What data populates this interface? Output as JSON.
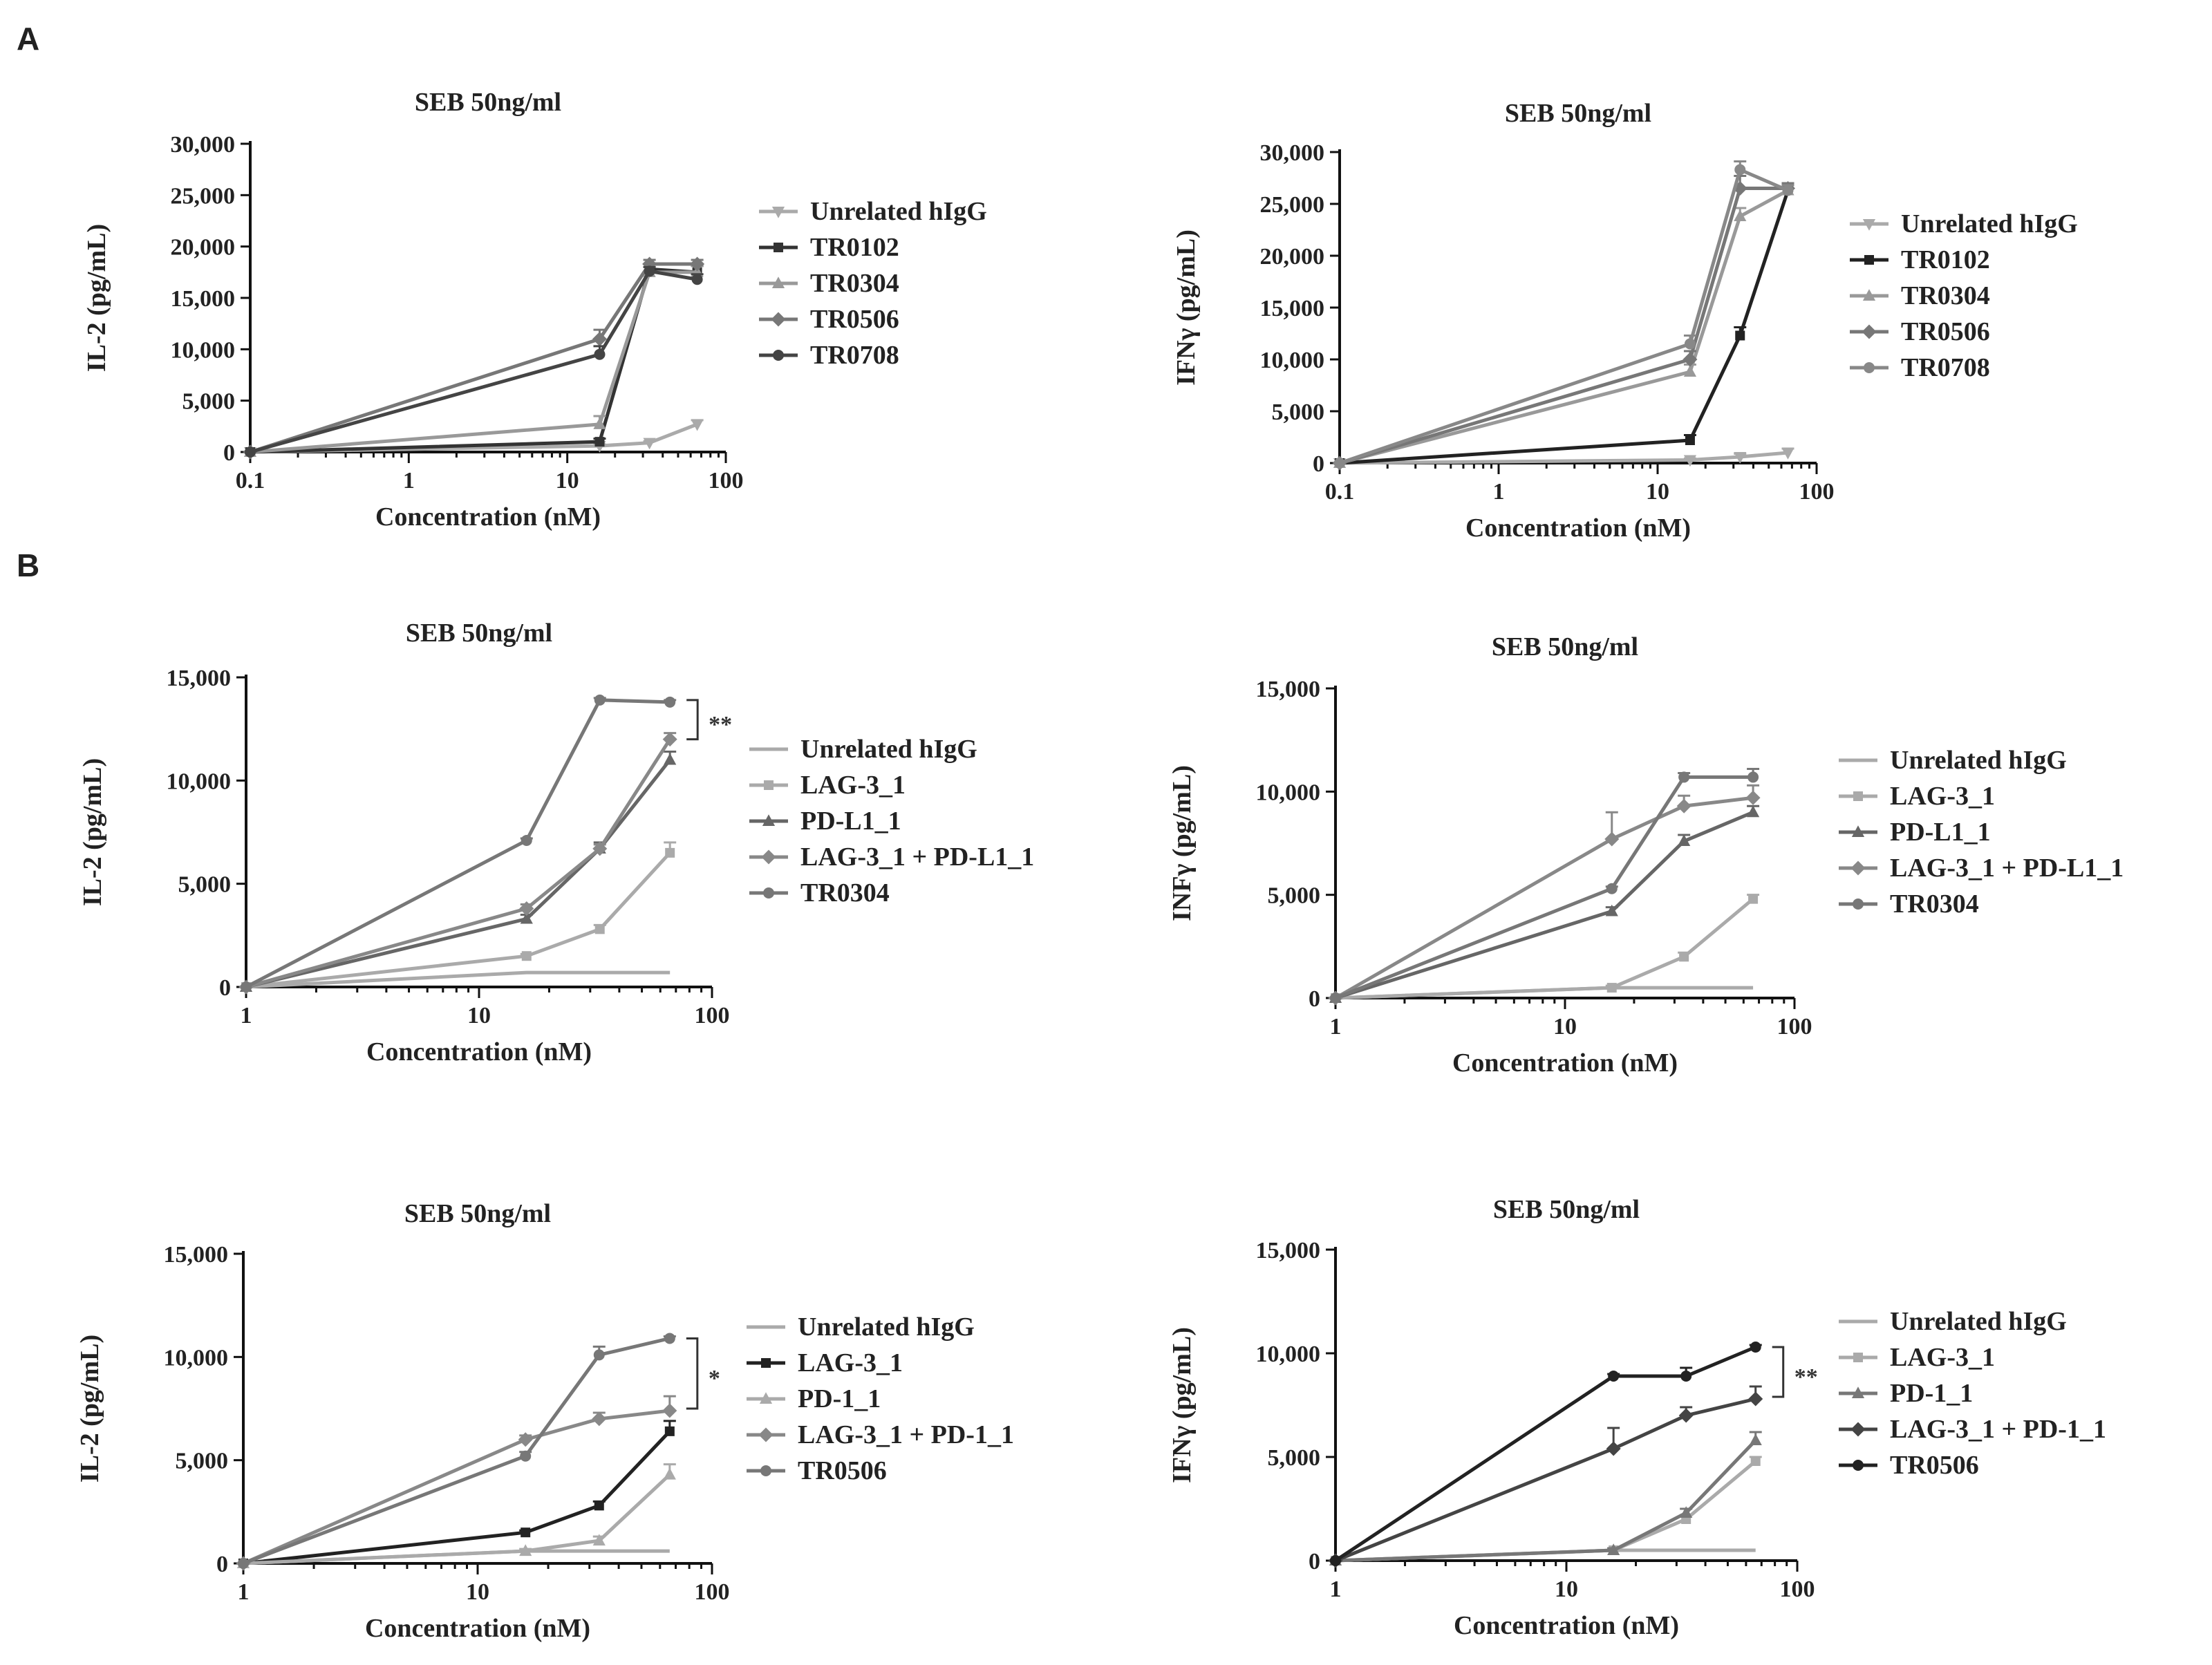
{
  "panels": {
    "A": "A",
    "B": "B"
  },
  "colors": {
    "black": "#222222",
    "dark": "#555555",
    "mid": "#777777",
    "light": "#999999",
    "lighter": "#aaaaaa"
  },
  "chart_data": [
    {
      "id": "a-il2",
      "type": "line",
      "title": "SEB 50ng/ml",
      "xlabel": "Concentration (nM)",
      "ylabel": "IL-2 (pg/mL)",
      "xscale": "log",
      "xlim": [
        0.1,
        100
      ],
      "ylim": [
        0,
        30000
      ],
      "yticks": [
        0,
        5000,
        10000,
        15000,
        20000,
        25000,
        30000
      ],
      "ytick_labels": [
        "0",
        "5,000",
        "10,000",
        "15,000",
        "20,000",
        "25,000",
        "30,000"
      ],
      "xticks": [
        0.1,
        1,
        10,
        100
      ],
      "xtick_labels": [
        "0.1",
        "1",
        "10",
        "100"
      ],
      "legend_position": "right",
      "series": [
        {
          "name": "Unrelated hIgG",
          "color": "#aaaaaa",
          "marker": "tri-down",
          "x": [
            0.1,
            16,
            33,
            66
          ],
          "y": [
            0,
            600,
            900,
            2700
          ],
          "err": [
            0,
            150,
            150,
            400
          ]
        },
        {
          "name": "TR0102",
          "color": "#333333",
          "marker": "square",
          "x": [
            0.1,
            16,
            33,
            66
          ],
          "y": [
            0,
            1000,
            17800,
            17500
          ],
          "err": [
            0,
            300,
            500,
            600
          ]
        },
        {
          "name": "TR0304",
          "color": "#999999",
          "marker": "tri-up",
          "x": [
            0.1,
            16,
            33,
            66
          ],
          "y": [
            0,
            2700,
            17500,
            17500
          ],
          "err": [
            0,
            800,
            500,
            600
          ]
        },
        {
          "name": "TR0506",
          "color": "#777777",
          "marker": "diamond",
          "x": [
            0.1,
            16,
            33,
            66
          ],
          "y": [
            0,
            11000,
            18300,
            18300
          ],
          "err": [
            0,
            900,
            400,
            400
          ]
        },
        {
          "name": "TR0708",
          "color": "#444444",
          "marker": "circle",
          "x": [
            0.1,
            16,
            33,
            66
          ],
          "y": [
            0,
            9500,
            17600,
            16800
          ],
          "err": [
            0,
            800,
            400,
            500
          ]
        }
      ]
    },
    {
      "id": "a-ifng",
      "type": "line",
      "title": "SEB 50ng/ml",
      "xlabel": "Concentration (nM)",
      "ylabel": "IFNγ (pg/mL)",
      "xscale": "log",
      "xlim": [
        0.1,
        100
      ],
      "ylim": [
        0,
        30000
      ],
      "yticks": [
        0,
        5000,
        10000,
        15000,
        20000,
        25000,
        30000
      ],
      "ytick_labels": [
        "0",
        "5,000",
        "10,000",
        "15,000",
        "20,000",
        "25,000",
        "30,000"
      ],
      "xticks": [
        0.1,
        1,
        10,
        100
      ],
      "xtick_labels": [
        "0.1",
        "1",
        "10",
        "100"
      ],
      "legend_position": "right",
      "series": [
        {
          "name": "Unrelated hIgG",
          "color": "#aaaaaa",
          "marker": "tri-down",
          "x": [
            0.1,
            16,
            33,
            66
          ],
          "y": [
            0,
            300,
            600,
            1000
          ],
          "err": [
            0,
            150,
            300,
            400
          ]
        },
        {
          "name": "TR0102",
          "color": "#222222",
          "marker": "square",
          "x": [
            0.1,
            16,
            33,
            66
          ],
          "y": [
            0,
            2200,
            12300,
            26300
          ],
          "err": [
            0,
            500,
            800,
            500
          ]
        },
        {
          "name": "TR0304",
          "color": "#999999",
          "marker": "tri-up",
          "x": [
            0.1,
            16,
            33,
            66
          ],
          "y": [
            0,
            8800,
            23800,
            26300
          ],
          "err": [
            0,
            700,
            800,
            500
          ]
        },
        {
          "name": "TR0506",
          "color": "#777777",
          "marker": "diamond",
          "x": [
            0.1,
            16,
            33,
            66
          ],
          "y": [
            0,
            10000,
            26500,
            26500
          ],
          "err": [
            0,
            800,
            1200,
            500
          ]
        },
        {
          "name": "TR0708",
          "color": "#888888",
          "marker": "circle",
          "x": [
            0.1,
            16,
            33,
            66
          ],
          "y": [
            0,
            11500,
            28300,
            26300
          ],
          "err": [
            0,
            800,
            800,
            500
          ]
        }
      ]
    },
    {
      "id": "b-il2-pdl1",
      "type": "line",
      "title": "SEB 50ng/ml",
      "xlabel": "Concentration (nM)",
      "ylabel": "IL-2 (pg/mL)",
      "xscale": "log",
      "xlim": [
        1,
        100
      ],
      "ylim": [
        0,
        15000
      ],
      "yticks": [
        0,
        5000,
        10000,
        15000
      ],
      "ytick_labels": [
        "0",
        "5,000",
        "10,000",
        "15,000"
      ],
      "xticks": [
        1,
        10,
        100
      ],
      "xtick_labels": [
        "1",
        "10",
        "100"
      ],
      "legend_position": "right",
      "significance": {
        "label": "**",
        "y_top": 13900,
        "y_bottom": 12000
      },
      "series": [
        {
          "name": "Unrelated hIgG",
          "color": "#aaaaaa",
          "marker": "none",
          "x": [
            1,
            16,
            33,
            66
          ],
          "y": [
            0,
            700,
            700,
            700
          ],
          "err": [
            0,
            0,
            0,
            0
          ]
        },
        {
          "name": "LAG-3_1",
          "color": "#aaaaaa",
          "marker": "square",
          "x": [
            1,
            16,
            33,
            66
          ],
          "y": [
            0,
            1500,
            2800,
            6500
          ],
          "err": [
            0,
            100,
            200,
            500
          ]
        },
        {
          "name": "PD-L1_1",
          "color": "#666666",
          "marker": "tri-up",
          "x": [
            1,
            16,
            33,
            66
          ],
          "y": [
            0,
            3300,
            6700,
            11000
          ],
          "err": [
            0,
            200,
            300,
            400
          ]
        },
        {
          "name": "LAG-3_1 + PD-L1_1",
          "color": "#888888",
          "marker": "diamond",
          "x": [
            1,
            16,
            33,
            66
          ],
          "y": [
            0,
            3800,
            6700,
            12000
          ],
          "err": [
            0,
            200,
            200,
            300
          ]
        },
        {
          "name": "TR0304",
          "color": "#777777",
          "marker": "circle",
          "x": [
            1,
            16,
            33,
            66
          ],
          "y": [
            0,
            7100,
            13900,
            13800
          ],
          "err": [
            0,
            100,
            100,
            100
          ]
        }
      ]
    },
    {
      "id": "b-infg-pdl1",
      "type": "line",
      "title": "SEB 50ng/ml",
      "xlabel": "Concentration (nM)",
      "ylabel": "INFγ (pg/mL)",
      "xscale": "log",
      "xlim": [
        1,
        100
      ],
      "ylim": [
        0,
        15000
      ],
      "yticks": [
        0,
        5000,
        10000,
        15000
      ],
      "ytick_labels": [
        "0",
        "5,000",
        "10,000",
        "15,000"
      ],
      "xticks": [
        1,
        10,
        100
      ],
      "xtick_labels": [
        "1",
        "10",
        "100"
      ],
      "legend_position": "right",
      "series": [
        {
          "name": "Unrelated hIgG",
          "color": "#aaaaaa",
          "marker": "none",
          "x": [
            1,
            16,
            33,
            66
          ],
          "y": [
            0,
            500,
            500,
            500
          ],
          "err": [
            0,
            0,
            0,
            0
          ]
        },
        {
          "name": "LAG-3_1",
          "color": "#aaaaaa",
          "marker": "square",
          "x": [
            1,
            16,
            33,
            66
          ],
          "y": [
            0,
            500,
            2000,
            4800
          ],
          "err": [
            0,
            100,
            200,
            200
          ]
        },
        {
          "name": "PD-L1_1",
          "color": "#666666",
          "marker": "tri-up",
          "x": [
            1,
            16,
            33,
            66
          ],
          "y": [
            0,
            4200,
            7600,
            9000
          ],
          "err": [
            0,
            200,
            300,
            300
          ]
        },
        {
          "name": "LAG-3_1 + PD-L1_1",
          "color": "#888888",
          "marker": "diamond",
          "x": [
            1,
            16,
            33,
            66
          ],
          "y": [
            0,
            7700,
            9300,
            9700
          ],
          "err": [
            0,
            1300,
            500,
            600
          ]
        },
        {
          "name": "TR0304",
          "color": "#777777",
          "marker": "circle",
          "x": [
            1,
            16,
            33,
            66
          ],
          "y": [
            0,
            5300,
            10700,
            10700
          ],
          "err": [
            0,
            100,
            200,
            400
          ]
        }
      ]
    },
    {
      "id": "b-il2-pd1",
      "type": "line",
      "title": "SEB 50ng/ml",
      "xlabel": "Concentration (nM)",
      "ylabel": "IL-2 (pg/mL)",
      "xscale": "log",
      "xlim": [
        1,
        100
      ],
      "ylim": [
        0,
        15000
      ],
      "yticks": [
        0,
        5000,
        10000,
        15000
      ],
      "ytick_labels": [
        "0",
        "5,000",
        "10,000",
        "15,000"
      ],
      "xticks": [
        1,
        10,
        100
      ],
      "xtick_labels": [
        "1",
        "10",
        "100"
      ],
      "legend_position": "right",
      "significance": {
        "label": "*",
        "y_top": 10900,
        "y_bottom": 7500
      },
      "series": [
        {
          "name": "Unrelated hIgG",
          "color": "#aaaaaa",
          "marker": "none",
          "x": [
            1,
            16,
            33,
            66
          ],
          "y": [
            0,
            600,
            600,
            600
          ],
          "err": [
            0,
            0,
            0,
            0
          ]
        },
        {
          "name": "LAG-3_1",
          "color": "#222222",
          "marker": "square",
          "x": [
            1,
            16,
            33,
            66
          ],
          "y": [
            0,
            1500,
            2800,
            6400
          ],
          "err": [
            0,
            100,
            200,
            500
          ]
        },
        {
          "name": "PD-1_1",
          "color": "#aaaaaa",
          "marker": "tri-up",
          "x": [
            1,
            16,
            33,
            66
          ],
          "y": [
            0,
            600,
            1100,
            4300
          ],
          "err": [
            0,
            100,
            200,
            500
          ]
        },
        {
          "name": "LAG-3_1 + PD-1_1",
          "color": "#888888",
          "marker": "diamond",
          "x": [
            1,
            16,
            33,
            66
          ],
          "y": [
            0,
            6000,
            7000,
            7400
          ],
          "err": [
            0,
            200,
            300,
            700
          ]
        },
        {
          "name": "TR0506",
          "color": "#777777",
          "marker": "circle",
          "x": [
            1,
            16,
            33,
            66
          ],
          "y": [
            0,
            5200,
            10100,
            10900
          ],
          "err": [
            0,
            200,
            400,
            100
          ]
        }
      ]
    },
    {
      "id": "b-ifng-pd1",
      "type": "line",
      "title": "SEB 50ng/ml",
      "xlabel": "Concentration (nM)",
      "ylabel": "IFNγ (pg/mL)",
      "xscale": "log",
      "xlim": [
        1,
        100
      ],
      "ylim": [
        0,
        15000
      ],
      "yticks": [
        0,
        5000,
        10000,
        15000
      ],
      "ytick_labels": [
        "0",
        "5,000",
        "10,000",
        "15,000"
      ],
      "xticks": [
        1,
        10,
        100
      ],
      "xtick_labels": [
        "1",
        "10",
        "100"
      ],
      "legend_position": "right",
      "significance": {
        "label": "**",
        "y_top": 10300,
        "y_bottom": 7900
      },
      "series": [
        {
          "name": "Unrelated hIgG",
          "color": "#aaaaaa",
          "marker": "none",
          "x": [
            1,
            16,
            33,
            66
          ],
          "y": [
            0,
            500,
            500,
            500
          ],
          "err": [
            0,
            0,
            0,
            0
          ]
        },
        {
          "name": "LAG-3_1",
          "color": "#aaaaaa",
          "marker": "square",
          "x": [
            1,
            16,
            33,
            66
          ],
          "y": [
            0,
            500,
            2000,
            4800
          ],
          "err": [
            0,
            100,
            200,
            200
          ]
        },
        {
          "name": "PD-1_1",
          "color": "#777777",
          "marker": "tri-up",
          "x": [
            1,
            16,
            33,
            66
          ],
          "y": [
            0,
            500,
            2300,
            5800
          ],
          "err": [
            0,
            100,
            200,
            400
          ]
        },
        {
          "name": "LAG-3_1 + PD-1_1",
          "color": "#444444",
          "marker": "diamond",
          "x": [
            1,
            16,
            33,
            66
          ],
          "y": [
            0,
            5400,
            7000,
            7800
          ],
          "err": [
            0,
            1000,
            400,
            600
          ]
        },
        {
          "name": "TR0506",
          "color": "#222222",
          "marker": "circle",
          "x": [
            1,
            16,
            33,
            66
          ],
          "y": [
            0,
            8900,
            8900,
            10300
          ],
          "err": [
            0,
            100,
            400,
            100
          ]
        }
      ]
    }
  ]
}
